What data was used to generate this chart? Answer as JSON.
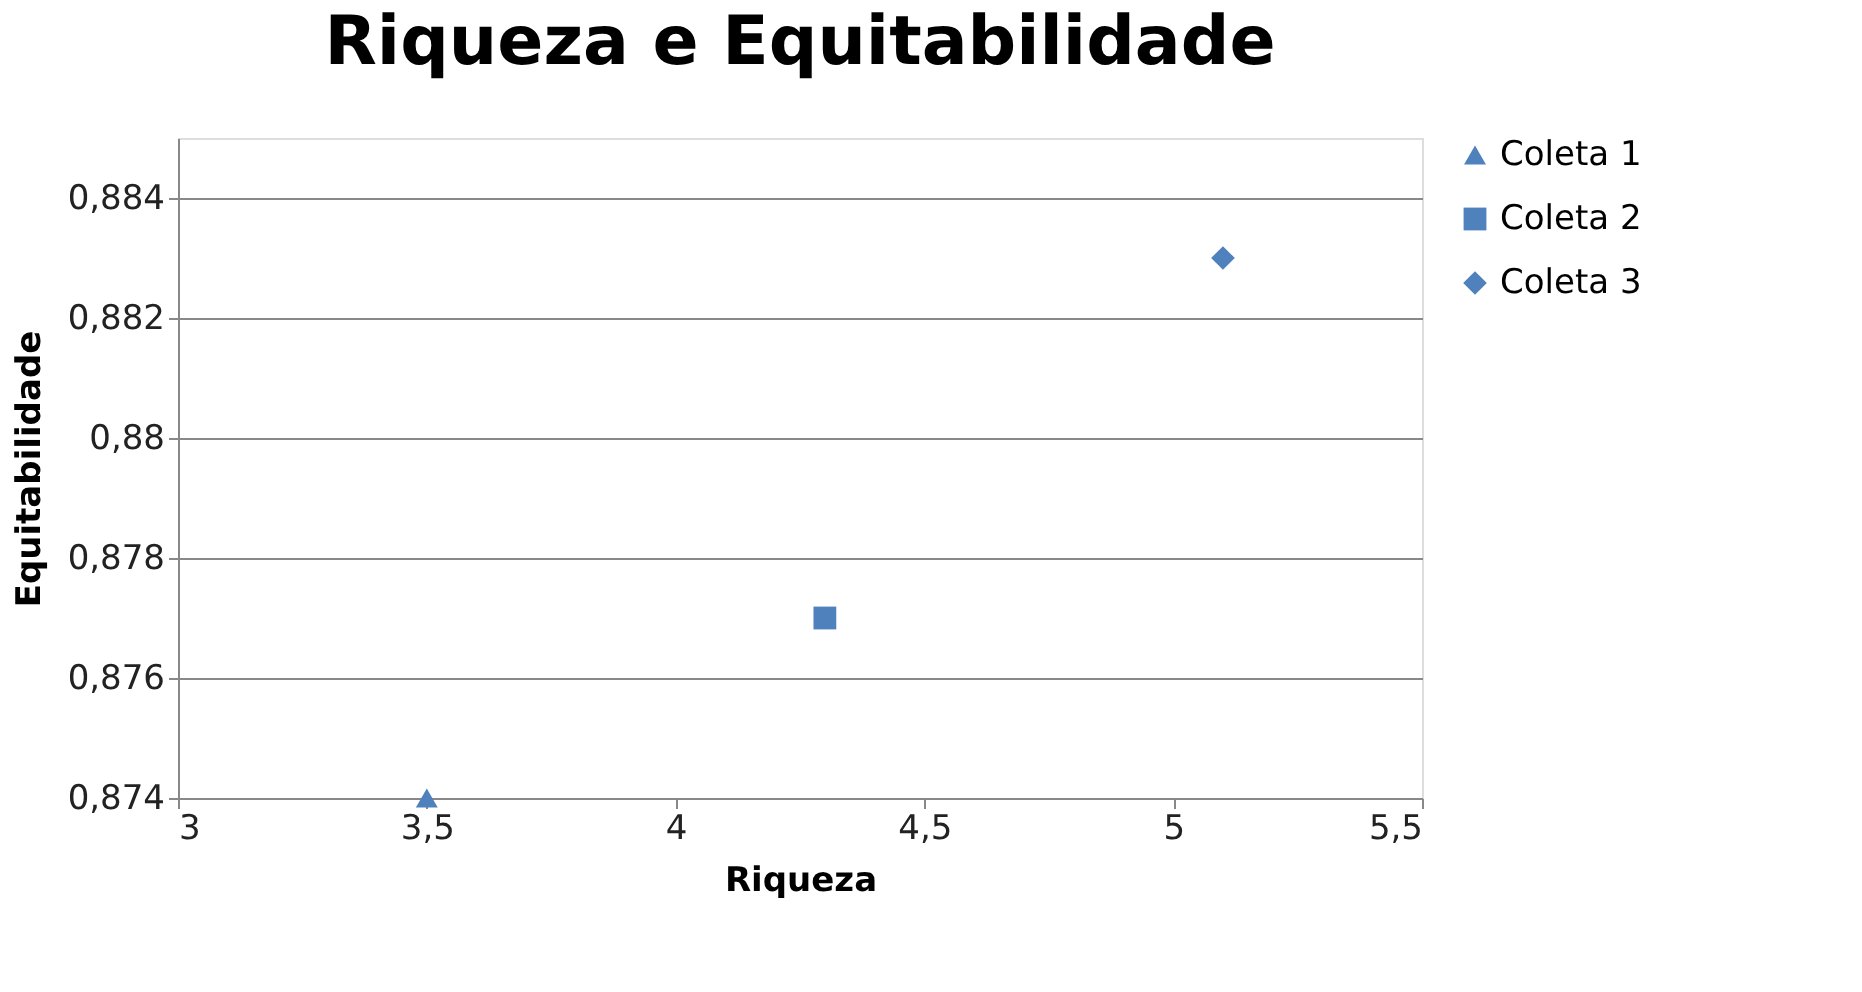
{
  "chart_data": {
    "type": "scatter",
    "title": "Riqueza e Equitabilidade",
    "xlabel": "Riqueza",
    "ylabel": "Equitabilidade",
    "series": [
      {
        "name": "Coleta 1",
        "color": "#4f81bd",
        "marker": "triangle",
        "x": [
          3.5
        ],
        "values": [
          0.874
        ]
      },
      {
        "name": "Coleta 2",
        "color": "#4f81bd",
        "marker": "square",
        "x": [
          4.3
        ],
        "values": [
          0.877
        ]
      },
      {
        "name": "Coleta 3",
        "color": "#4f81bd",
        "marker": "diamond",
        "x": [
          5.1
        ],
        "values": [
          0.883
        ]
      }
    ],
    "xlim": [
      3,
      5.5
    ],
    "xticks": [
      3,
      {
        "value": 3.5,
        "label": "3,5"
      },
      4,
      {
        "value": 4.5,
        "label": "4,5"
      },
      5,
      {
        "value": 5.5,
        "label": "5,5"
      }
    ],
    "ylim": [
      0.874,
      0.885
    ],
    "yticks": [
      {
        "value": 0.874,
        "label": "0,874"
      },
      {
        "value": 0.876,
        "label": "0,876"
      },
      {
        "value": 0.878,
        "label": "0,878"
      },
      {
        "value": 0.88,
        "label": "0,88"
      },
      {
        "value": 0.882,
        "label": "0,882"
      },
      {
        "value": 0.884,
        "label": "0,884"
      }
    ],
    "grid": "y",
    "legend": "right"
  }
}
